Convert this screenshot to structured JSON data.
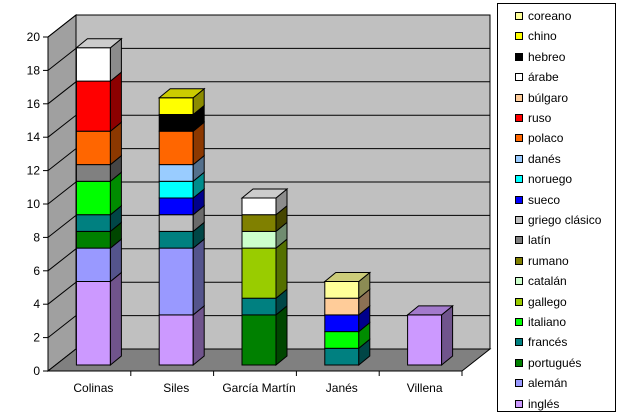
{
  "chart_data": {
    "type": "bar",
    "stacked": true,
    "three_d": true,
    "categories": [
      "Colinas",
      "Siles",
      "García Martín",
      "Janés",
      "Villena"
    ],
    "ylim": [
      0,
      20
    ],
    "yticks": [
      0,
      2,
      4,
      6,
      8,
      10,
      12,
      14,
      16,
      18,
      20
    ],
    "grid": true,
    "legend_position": "right",
    "series": [
      {
        "name": "inglés",
        "color": "#CC99FF",
        "values": [
          5,
          3,
          0,
          0,
          3
        ]
      },
      {
        "name": "alemán",
        "color": "#9999FF",
        "values": [
          2,
          4,
          0,
          0,
          0
        ]
      },
      {
        "name": "portugués",
        "color": "#008000",
        "values": [
          1,
          0,
          3,
          0,
          0
        ]
      },
      {
        "name": "francés",
        "color": "#008080",
        "values": [
          1,
          1,
          1,
          1,
          0
        ]
      },
      {
        "name": "italiano",
        "color": "#00FF00",
        "values": [
          2,
          0,
          0,
          1,
          0
        ]
      },
      {
        "name": "gallego",
        "color": "#99CC00",
        "values": [
          0,
          0,
          3,
          0,
          0
        ]
      },
      {
        "name": "catalán",
        "color": "#CCFFCC",
        "values": [
          0,
          0,
          1,
          0,
          0
        ]
      },
      {
        "name": "rumano",
        "color": "#808000",
        "values": [
          0,
          0,
          1,
          0,
          0
        ]
      },
      {
        "name": "latín",
        "color": "#808080",
        "values": [
          1,
          0,
          0,
          0,
          0
        ]
      },
      {
        "name": "griego clásico",
        "color": "#C0C0C0",
        "values": [
          0,
          1,
          0,
          0,
          0
        ]
      },
      {
        "name": "sueco",
        "color": "#0000FF",
        "values": [
          0,
          1,
          0,
          1,
          0
        ]
      },
      {
        "name": "noruego",
        "color": "#00FFFF",
        "values": [
          0,
          1,
          0,
          0,
          0
        ]
      },
      {
        "name": "danés",
        "color": "#99CCFF",
        "values": [
          0,
          1,
          0,
          0,
          0
        ]
      },
      {
        "name": "polaco",
        "color": "#FF6600",
        "values": [
          2,
          2,
          0,
          0,
          0
        ]
      },
      {
        "name": "ruso",
        "color": "#FF0000",
        "values": [
          3,
          0,
          0,
          0,
          0
        ]
      },
      {
        "name": "búlgaro",
        "color": "#FFCC99",
        "values": [
          0,
          0,
          0,
          1,
          0
        ]
      },
      {
        "name": "árabe",
        "color": "#FFFFFF",
        "values": [
          2,
          0,
          1,
          0,
          0
        ]
      },
      {
        "name": "hebreo",
        "color": "#000000",
        "values": [
          0,
          1,
          0,
          0,
          0
        ]
      },
      {
        "name": "chino",
        "color": "#FFFF00",
        "values": [
          0,
          1,
          0,
          0,
          0
        ]
      },
      {
        "name": "coreano",
        "color": "#FFFF99",
        "values": [
          0,
          0,
          0,
          1,
          0
        ]
      }
    ],
    "colors": {
      "plot_wall": "#C0C0C0",
      "floor": "#808080",
      "side_wall": "#A0A0A0"
    }
  }
}
